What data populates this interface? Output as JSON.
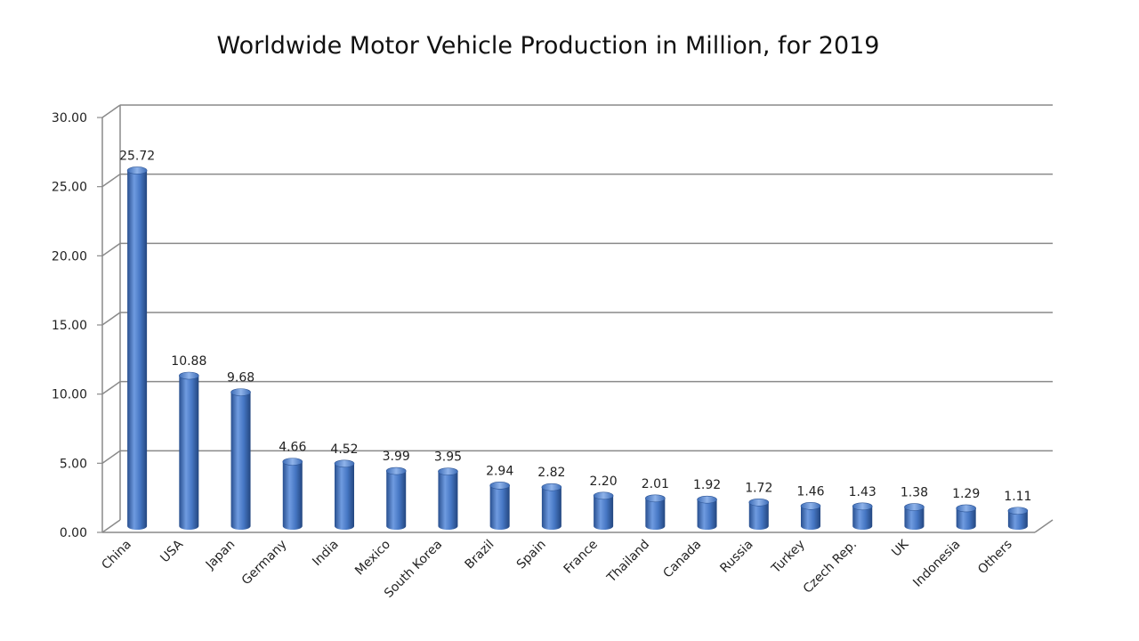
{
  "chart_data": {
    "type": "bar",
    "title": "Worldwide Motor Vehicle Production in Million, for 2019",
    "xlabel": "",
    "ylabel": "",
    "categories": [
      "China",
      "USA",
      "Japan",
      "Germany",
      "India",
      "Mexico",
      "South Korea",
      "Brazil",
      "Spain",
      "France",
      "Thailand",
      "Canada",
      "Russia",
      "Turkey",
      "Czech Rep.",
      "UK",
      "Indonesia",
      "Others"
    ],
    "values": [
      25.72,
      10.88,
      9.68,
      4.66,
      4.52,
      3.99,
      3.95,
      2.94,
      2.82,
      2.2,
      2.01,
      1.92,
      1.72,
      1.46,
      1.43,
      1.38,
      1.29,
      1.11
    ],
    "data_labels": [
      "25.72",
      "10.88",
      "9.68",
      "4.66",
      "4.52",
      "3.99",
      "3.95",
      "2.94",
      "2.82",
      "2.20",
      "2.01",
      "1.92",
      "1.72",
      "1.46",
      "1.43",
      "1.38",
      "1.29",
      "1.11"
    ],
    "yticks": [
      "0.00",
      "5.00",
      "10.00",
      "15.00",
      "20.00",
      "25.00",
      "30.00"
    ],
    "ylim": [
      0,
      30
    ],
    "grid": true,
    "legend": "none",
    "bar_color": "#3f6fb5"
  }
}
